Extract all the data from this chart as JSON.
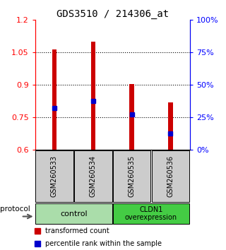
{
  "title": "GDS3510 / 214306_at",
  "samples": [
    "GSM260533",
    "GSM260534",
    "GSM260535",
    "GSM260536"
  ],
  "red_values": [
    1.065,
    1.1,
    0.905,
    0.82
  ],
  "blue_values": [
    0.795,
    0.825,
    0.765,
    0.675
  ],
  "y_min": 0.6,
  "y_max": 1.2,
  "y_ticks_left": [
    0.6,
    0.75,
    0.9,
    1.05,
    1.2
  ],
  "y_ticks_right": [
    0,
    25,
    50,
    75,
    100
  ],
  "bar_color": "#cc0000",
  "marker_color": "#0000cc",
  "bar_width": 0.12,
  "legend_items": [
    {
      "color": "#cc0000",
      "label": "transformed count"
    },
    {
      "color": "#0000cc",
      "label": "percentile rank within the sample"
    }
  ],
  "control_color": "#aaddaa",
  "cldn_color": "#44cc44",
  "sample_box_color": "#cccccc"
}
